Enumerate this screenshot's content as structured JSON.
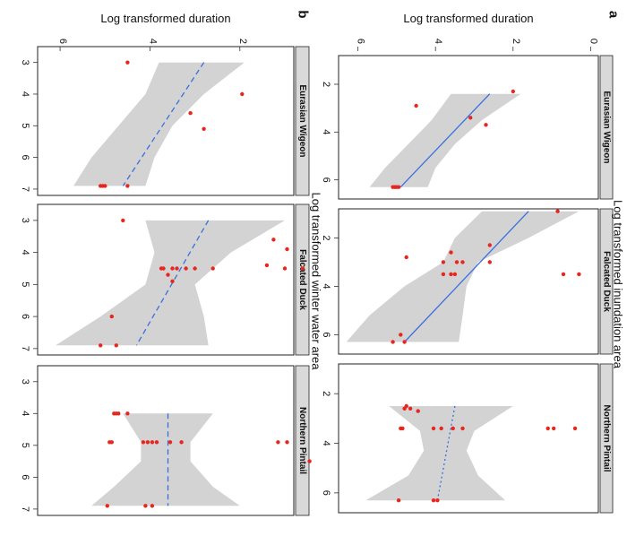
{
  "figure": {
    "panel_labels": [
      "a",
      "b"
    ],
    "shared_ylabel": "Log transformed duration"
  },
  "chart_data": [
    {
      "type": "scatter",
      "panel": "a",
      "xlabel": "Log transformed inundation area",
      "ylabel": "Log transformed duration",
      "xlim": [
        0.8,
        6.8
      ],
      "ylim": [
        -0.2,
        6.5
      ],
      "xticks": [
        2,
        4,
        6
      ],
      "yticks": [
        0,
        2,
        4,
        6
      ],
      "grid": false,
      "facets": [
        {
          "name": "Eurasian Wigeon",
          "points": [
            [
              2.3,
              2.0
            ],
            [
              2.9,
              4.5
            ],
            [
              3.4,
              3.1
            ],
            [
              3.7,
              2.7
            ],
            [
              6.3,
              4.95
            ],
            [
              6.3,
              5.05
            ],
            [
              6.3,
              5.1
            ],
            [
              6.3,
              5.0
            ]
          ],
          "fit": {
            "x0": 2.4,
            "y0": 2.6,
            "x1": 6.3,
            "y1": 4.9,
            "line": "solid"
          },
          "band": [
            [
              2.4,
              1.8,
              3.6
            ],
            [
              3.5,
              2.8,
              4.1
            ],
            [
              4.5,
              3.5,
              4.7
            ],
            [
              5.5,
              4.0,
              5.3
            ],
            [
              6.3,
              4.2,
              5.7
            ]
          ]
        },
        {
          "name": "Falcated Duck",
          "points": [
            [
              0.9,
              0.85
            ],
            [
              2.3,
              2.6
            ],
            [
              2.6,
              3.6
            ],
            [
              2.8,
              4.75
            ],
            [
              3.0,
              2.6
            ],
            [
              3.0,
              3.3
            ],
            [
              3.0,
              3.45
            ],
            [
              3.0,
              3.8
            ],
            [
              3.5,
              0.3
            ],
            [
              3.5,
              0.7
            ],
            [
              3.5,
              3.5
            ],
            [
              3.5,
              3.6
            ],
            [
              3.5,
              3.8
            ],
            [
              6.0,
              4.9
            ],
            [
              6.3,
              4.8
            ],
            [
              6.3,
              5.1
            ]
          ],
          "fit": {
            "x0": 0.9,
            "y0": 1.6,
            "x1": 6.3,
            "y1": 4.8,
            "line": "solid"
          },
          "band": [
            [
              0.9,
              0.3,
              2.8
            ],
            [
              2.0,
              1.6,
              3.5
            ],
            [
              3.0,
              2.9,
              3.8
            ],
            [
              4.0,
              3.2,
              4.8
            ],
            [
              5.2,
              3.3,
              5.7
            ],
            [
              6.3,
              3.4,
              6.3
            ]
          ]
        },
        {
          "name": "Northern Pintail",
          "points": [
            [
              2.5,
              4.75
            ],
            [
              2.6,
              4.65
            ],
            [
              2.6,
              4.8
            ],
            [
              2.7,
              4.45
            ],
            [
              3.4,
              0.4
            ],
            [
              3.4,
              0.95
            ],
            [
              3.4,
              1.1
            ],
            [
              3.4,
              3.3
            ],
            [
              3.4,
              3.55
            ],
            [
              3.4,
              3.85
            ],
            [
              3.4,
              4.05
            ],
            [
              3.4,
              4.85
            ],
            [
              3.4,
              4.9
            ],
            [
              6.3,
              3.95
            ],
            [
              6.3,
              4.05
            ],
            [
              6.3,
              4.95
            ]
          ],
          "fit": {
            "x0": 2.5,
            "y0": 3.5,
            "x1": 6.3,
            "y1": 3.95,
            "line": "dotted"
          },
          "band": [
            [
              2.5,
              2.0,
              5.2
            ],
            [
              3.5,
              3.0,
              4.4
            ],
            [
              4.3,
              3.2,
              4.3
            ],
            [
              5.3,
              2.9,
              4.7
            ],
            [
              6.3,
              2.2,
              5.8
            ]
          ]
        }
      ]
    },
    {
      "type": "scatter",
      "panel": "b",
      "xlabel": "Log transformed winter water area",
      "ylabel": "Log transformed duration",
      "xlim": [
        2.5,
        7.2
      ],
      "ylim": [
        0.8,
        6.5
      ],
      "xticks": [
        3,
        4,
        5,
        6,
        7
      ],
      "yticks": [
        2,
        4,
        6
      ],
      "grid": false,
      "facets": [
        {
          "name": "Eurasian Wigeon",
          "points": [
            [
              3.0,
              4.5
            ],
            [
              4.0,
              1.95
            ],
            [
              4.6,
              3.1
            ],
            [
              5.1,
              2.8
            ],
            [
              6.9,
              4.5
            ],
            [
              6.9,
              5.0
            ],
            [
              6.9,
              5.05
            ],
            [
              6.9,
              5.1
            ]
          ],
          "fit": {
            "x0": 3.0,
            "y0": 2.8,
            "x1": 6.9,
            "y1": 4.6,
            "line": "dashed"
          },
          "band": [
            [
              3.0,
              1.9,
              3.8
            ],
            [
              4.0,
              2.8,
              4.1
            ],
            [
              5.0,
              3.5,
              4.7
            ],
            [
              6.0,
              3.9,
              5.3
            ],
            [
              6.9,
              4.1,
              5.7
            ]
          ]
        },
        {
          "name": "Falcated Duck",
          "points": [
            [
              3.0,
              4.6
            ],
            [
              3.6,
              1.25
            ],
            [
              3.9,
              0.95
            ],
            [
              4.4,
              1.4
            ],
            [
              4.5,
              0.6
            ],
            [
              4.5,
              1.0
            ],
            [
              4.5,
              2.6
            ],
            [
              4.5,
              3.0
            ],
            [
              4.5,
              3.2
            ],
            [
              4.5,
              3.4
            ],
            [
              4.5,
              3.5
            ],
            [
              4.5,
              3.7
            ],
            [
              4.5,
              3.75
            ],
            [
              4.7,
              3.6
            ],
            [
              4.9,
              3.5
            ],
            [
              6.0,
              4.85
            ],
            [
              6.9,
              4.75
            ],
            [
              6.9,
              5.1
            ]
          ],
          "fit": {
            "x0": 3.0,
            "y0": 2.7,
            "x1": 6.9,
            "y1": 4.3,
            "line": "dashed"
          },
          "band": [
            [
              3.0,
              1.0,
              4.1
            ],
            [
              4.0,
              2.2,
              3.9
            ],
            [
              5.0,
              3.0,
              4.1
            ],
            [
              6.0,
              2.8,
              5.1
            ],
            [
              6.9,
              2.7,
              6.1
            ]
          ]
        },
        {
          "name": "Northern Pintail",
          "points": [
            [
              4.0,
              4.5
            ],
            [
              4.0,
              4.7
            ],
            [
              4.0,
              4.8
            ],
            [
              4.0,
              4.75
            ],
            [
              4.9,
              0.95
            ],
            [
              4.9,
              1.15
            ],
            [
              4.9,
              3.3
            ],
            [
              4.9,
              3.55
            ],
            [
              4.9,
              3.85
            ],
            [
              4.9,
              4.05
            ],
            [
              4.9,
              4.85
            ],
            [
              4.9,
              4.9
            ],
            [
              4.9,
              4.15
            ],
            [
              4.9,
              3.95
            ],
            [
              5.5,
              0.45
            ],
            [
              6.9,
              3.95
            ],
            [
              6.9,
              4.1
            ],
            [
              6.9,
              4.95
            ]
          ],
          "fit": {
            "x0": 4.0,
            "y0": 3.6,
            "x1": 6.9,
            "y1": 3.6,
            "line": "dashed"
          },
          "band": [
            [
              4.0,
              2.6,
              4.6
            ],
            [
              4.9,
              3.1,
              4.2
            ],
            [
              5.5,
              3.1,
              4.2
            ],
            [
              6.3,
              2.6,
              4.8
            ],
            [
              6.9,
              2.0,
              5.3
            ]
          ]
        }
      ]
    }
  ]
}
